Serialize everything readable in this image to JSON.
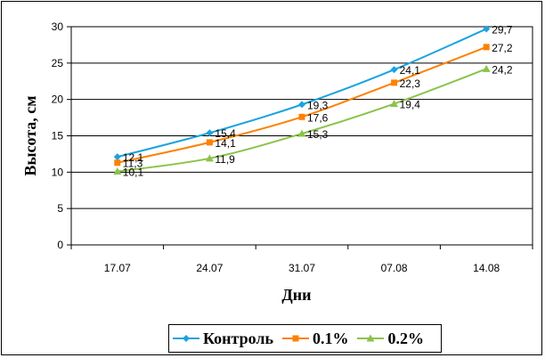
{
  "chart_data": {
    "type": "line",
    "xlabel": "Дни",
    "ylabel": "Высота, см",
    "categories": [
      "17.07",
      "24.07",
      "31.07",
      "07.08",
      "14.08"
    ],
    "ylim": [
      0,
      30
    ],
    "yticks": [
      0,
      5,
      10,
      15,
      20,
      25,
      30
    ],
    "grid": "horizontal",
    "legend_position": "bottom",
    "series": [
      {
        "name": "Контроль",
        "color": "#1aa3e0",
        "marker": "diamond",
        "values": [
          12.1,
          15.4,
          19.3,
          24.1,
          29.7
        ],
        "labels": [
          "12,1",
          "15,4",
          "19,3",
          "24,1",
          "29,7"
        ]
      },
      {
        "name": "0.1%",
        "color": "#ff8000",
        "marker": "square",
        "values": [
          11.3,
          14.1,
          17.6,
          22.3,
          27.2
        ],
        "labels": [
          "11,3",
          "14,1",
          "17,6",
          "22,3",
          "27,2"
        ]
      },
      {
        "name": "0.2%",
        "color": "#8bc34a",
        "marker": "triangle",
        "values": [
          10.1,
          11.9,
          15.3,
          19.4,
          24.2
        ],
        "labels": [
          "10,1",
          "11,9",
          "15,3",
          "19,4",
          "24,2"
        ]
      }
    ]
  }
}
